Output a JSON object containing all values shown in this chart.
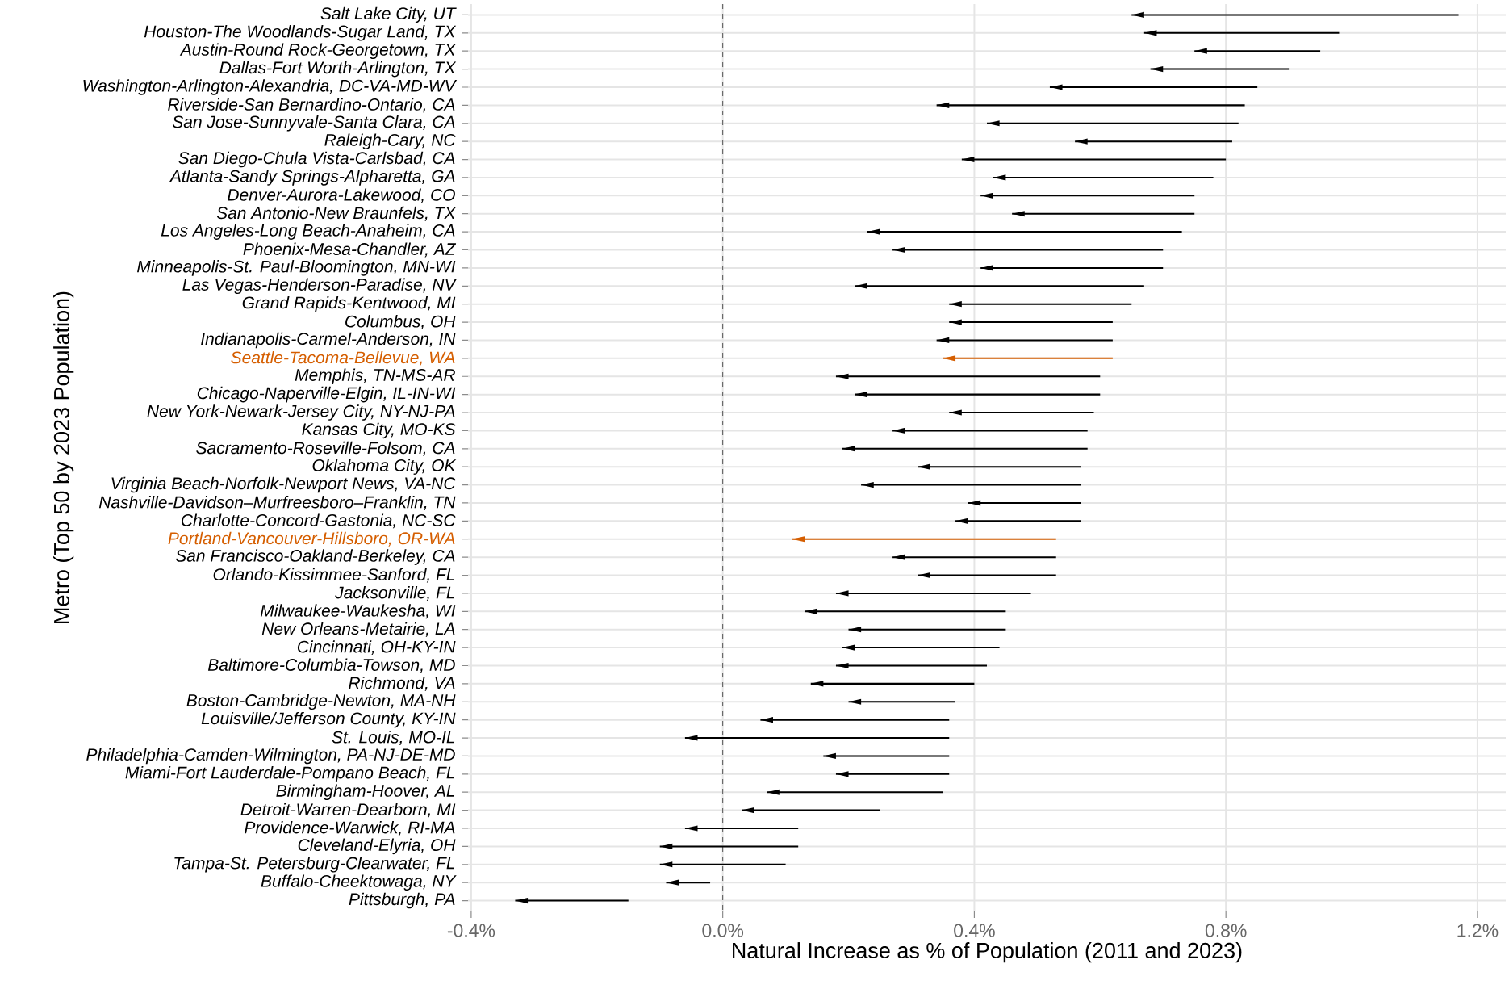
{
  "chart_data": {
    "type": "bar",
    "orientation": "horizontal",
    "xlabel": "Natural Increase as % of Population (2011 and 2023)",
    "ylabel": "Metro (Top 50 by 2023 Population)",
    "categories": [
      "Salt Lake City, UT",
      "Houston-The Woodlands-Sugar Land, TX",
      "Austin-Round Rock-Georgetown, TX",
      "Dallas-Fort Worth-Arlington, TX",
      "Washington-Arlington-Alexandria, DC-VA-MD-WV",
      "Riverside-San Bernardino-Ontario, CA",
      "San Jose-Sunnyvale-Santa Clara, CA",
      "Raleigh-Cary, NC",
      "San Diego-Chula Vista-Carlsbad, CA",
      "Atlanta-Sandy Springs-Alpharetta, GA",
      "Denver-Aurora-Lakewood, CO",
      "San Antonio-New Braunfels, TX",
      "Los Angeles-Long Beach-Anaheim, CA",
      "Phoenix-Mesa-Chandler, AZ",
      "Minneapolis-St. Paul-Bloomington, MN-WI",
      "Las Vegas-Henderson-Paradise, NV",
      "Grand Rapids-Kentwood, MI",
      "Columbus, OH",
      "Indianapolis-Carmel-Anderson, IN",
      "Seattle-Tacoma-Bellevue, WA",
      "Memphis, TN-MS-AR",
      "Chicago-Naperville-Elgin, IL-IN-WI",
      "New York-Newark-Jersey City, NY-NJ-PA",
      "Kansas City, MO-KS",
      "Sacramento-Roseville-Folsom, CA",
      "Oklahoma City, OK",
      "Virginia Beach-Norfolk-Newport News, VA-NC",
      "Nashville-Davidson–Murfreesboro–Franklin, TN",
      "Charlotte-Concord-Gastonia, NC-SC",
      "Portland-Vancouver-Hillsboro, OR-WA",
      "San Francisco-Oakland-Berkeley, CA",
      "Orlando-Kissimmee-Sanford, FL",
      "Jacksonville, FL",
      "Milwaukee-Waukesha, WI",
      "New Orleans-Metairie, LA",
      "Cincinnati, OH-KY-IN",
      "Baltimore-Columbia-Towson, MD",
      "Richmond, VA",
      "Boston-Cambridge-Newton, MA-NH",
      "Louisville/Jefferson County, KY-IN",
      "St. Louis, MO-IL",
      "Philadelphia-Camden-Wilmington, PA-NJ-DE-MD",
      "Miami-Fort Lauderdale-Pompano Beach, FL",
      "Birmingham-Hoover, AL",
      "Detroit-Warren-Dearborn, MI",
      "Providence-Warwick, RI-MA",
      "Cleveland-Elyria, OH",
      "Tampa-St. Petersburg-Clearwater, FL",
      "Buffalo-Cheektowaga, NY",
      "Pittsburgh, PA"
    ],
    "base": [
      1.17,
      0.98,
      0.95,
      0.9,
      0.85,
      0.83,
      0.82,
      0.81,
      0.8,
      0.78,
      0.75,
      0.75,
      0.73,
      0.7,
      0.7,
      0.67,
      0.65,
      0.62,
      0.62,
      0.62,
      0.6,
      0.6,
      0.59,
      0.58,
      0.58,
      0.57,
      0.57,
      0.57,
      0.57,
      0.53,
      0.53,
      0.53,
      0.49,
      0.45,
      0.45,
      0.44,
      0.42,
      0.4,
      0.37,
      0.36,
      0.36,
      0.36,
      0.36,
      0.35,
      0.25,
      0.12,
      0.12,
      0.1,
      -0.02,
      -0.15
    ],
    "values": [
      -0.52,
      -0.31,
      -0.2,
      -0.22,
      -0.33,
      -0.49,
      -0.4,
      -0.25,
      -0.42,
      -0.35,
      -0.34,
      -0.29,
      -0.5,
      -0.43,
      -0.29,
      -0.46,
      -0.29,
      -0.26,
      -0.28,
      -0.27,
      -0.42,
      -0.39,
      -0.23,
      -0.31,
      -0.39,
      -0.26,
      -0.35,
      -0.18,
      -0.2,
      -0.42,
      -0.26,
      -0.22,
      -0.31,
      -0.32,
      -0.25,
      -0.25,
      -0.24,
      -0.26,
      -0.17,
      -0.3,
      -0.42,
      -0.2,
      -0.18,
      -0.28,
      -0.22,
      -0.18,
      -0.22,
      -0.2,
      -0.07,
      -0.18
    ],
    "colors": [
      "#000000",
      "#000000",
      "#000000",
      "#000000",
      "#000000",
      "#000000",
      "#000000",
      "#000000",
      "#000000",
      "#000000",
      "#000000",
      "#000000",
      "#000000",
      "#000000",
      "#000000",
      "#000000",
      "#000000",
      "#000000",
      "#000000",
      "#d55e00",
      "#000000",
      "#000000",
      "#000000",
      "#000000",
      "#000000",
      "#000000",
      "#000000",
      "#000000",
      "#000000",
      "#d55e00",
      "#000000",
      "#000000",
      "#000000",
      "#000000",
      "#000000",
      "#000000",
      "#000000",
      "#000000",
      "#000000",
      "#000000",
      "#000000",
      "#000000",
      "#000000",
      "#000000",
      "#000000",
      "#000000",
      "#000000",
      "#000000",
      "#000000",
      "#000000"
    ],
    "xlim": [
      -0.405,
      1.245
    ],
    "xticks": [
      {
        "value": -0.4,
        "label": "-0.4%"
      },
      {
        "value": 0,
        "label": "0.0%"
      },
      {
        "value": 0.4,
        "label": "0.4%"
      },
      {
        "value": 0.8,
        "label": "0.8%"
      },
      {
        "value": 1.2,
        "label": "1.2%"
      }
    ],
    "grid": true,
    "ref_lines": [
      {
        "axis": "x",
        "value": 0,
        "line_style": "dashed",
        "color": "#555555"
      }
    ]
  }
}
